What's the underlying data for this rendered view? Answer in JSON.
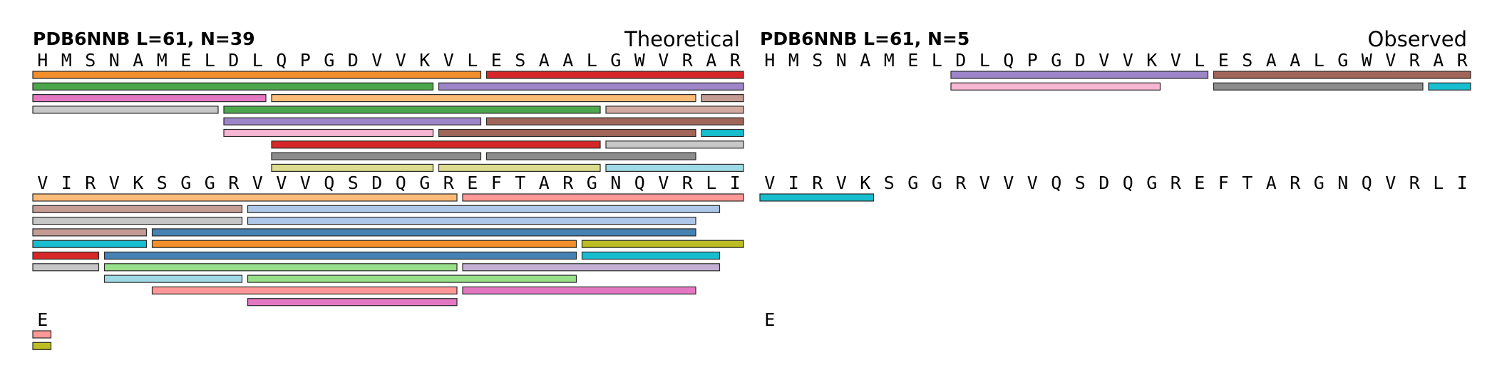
{
  "residue_width": 33.5,
  "panels": [
    {
      "id": "theoretical",
      "header": "PDB6NNB  L=61, N=39",
      "corner_label": "Theoretical",
      "blocks": [
        {
          "sequence": "HMSNAMELDLQPGDVVKVLESAALGWVRAR",
          "peptides": [
            {
              "start": 0,
              "end": 18,
              "lane": 0,
              "color": "#f28e2b"
            },
            {
              "start": 19,
              "end": 29,
              "lane": 0,
              "color": "#d62728"
            },
            {
              "start": 0,
              "end": 16,
              "lane": 1,
              "color": "#4ca64c"
            },
            {
              "start": 17,
              "end": 29,
              "lane": 1,
              "color": "#9e84c8"
            },
            {
              "start": 0,
              "end": 9,
              "lane": 2,
              "color": "#e377c2"
            },
            {
              "start": 10,
              "end": 27,
              "lane": 2,
              "color": "#ffbb78"
            },
            {
              "start": 28,
              "end": 29,
              "lane": 2,
              "color": "#c49c94"
            },
            {
              "start": 0,
              "end": 7,
              "lane": 3,
              "color": "#c7c7c7"
            },
            {
              "start": 8,
              "end": 23,
              "lane": 3,
              "color": "#4ca64c"
            },
            {
              "start": 24,
              "end": 29,
              "lane": 3,
              "color": "#d3aaa0"
            },
            {
              "start": 8,
              "end": 18,
              "lane": 4,
              "color": "#9e84c8"
            },
            {
              "start": 19,
              "end": 29,
              "lane": 4,
              "color": "#a0665a"
            },
            {
              "start": 8,
              "end": 16,
              "lane": 5,
              "color": "#f7b6d2"
            },
            {
              "start": 17,
              "end": 27,
              "lane": 5,
              "color": "#a0665a"
            },
            {
              "start": 28,
              "end": 29,
              "lane": 5,
              "color": "#17becf"
            },
            {
              "start": 10,
              "end": 23,
              "lane": 6,
              "color": "#d62728"
            },
            {
              "start": 24,
              "end": 29,
              "lane": 6,
              "color": "#c7c7c7"
            },
            {
              "start": 10,
              "end": 18,
              "lane": 7,
              "color": "#8c8c8c"
            },
            {
              "start": 19,
              "end": 27,
              "lane": 7,
              "color": "#8c8c8c"
            },
            {
              "start": 10,
              "end": 16,
              "lane": 8,
              "color": "#dbdb8d"
            },
            {
              "start": 17,
              "end": 23,
              "lane": 8,
              "color": "#dbdb8d"
            },
            {
              "start": 24,
              "end": 29,
              "lane": 8,
              "color": "#9edae5"
            }
          ]
        },
        {
          "sequence": "VIRVKSGGRVVVQSDQGREFTARGNQVRLI",
          "peptides": [
            {
              "start": 0,
              "end": 17,
              "lane": 0,
              "color": "#ffbb78"
            },
            {
              "start": 18,
              "end": 29,
              "lane": 0,
              "color": "#ff9896"
            },
            {
              "start": 0,
              "end": 8,
              "lane": 1,
              "color": "#c49c94"
            },
            {
              "start": 9,
              "end": 28,
              "lane": 1,
              "color": "#aec7e8"
            },
            {
              "start": 0,
              "end": 8,
              "lane": 2,
              "color": "#c7c7c7"
            },
            {
              "start": 9,
              "end": 27,
              "lane": 2,
              "color": "#aec7e8"
            },
            {
              "start": 0,
              "end": 4,
              "lane": 3,
              "color": "#c49c94"
            },
            {
              "start": 5,
              "end": 27,
              "lane": 3,
              "color": "#4682b4"
            },
            {
              "start": 0,
              "end": 4,
              "lane": 4,
              "color": "#17becf"
            },
            {
              "start": 5,
              "end": 22,
              "lane": 4,
              "color": "#f28e2b"
            },
            {
              "start": 23,
              "end": 29,
              "lane": 4,
              "color": "#bcbd22"
            },
            {
              "start": 0,
              "end": 2,
              "lane": 5,
              "color": "#d62728"
            },
            {
              "start": 3,
              "end": 22,
              "lane": 5,
              "color": "#4682b4"
            },
            {
              "start": 23,
              "end": 28,
              "lane": 5,
              "color": "#17becf"
            },
            {
              "start": 0,
              "end": 2,
              "lane": 6,
              "color": "#c7c7c7"
            },
            {
              "start": 3,
              "end": 17,
              "lane": 6,
              "color": "#98df8a"
            },
            {
              "start": 18,
              "end": 28,
              "lane": 6,
              "color": "#c5b0d5"
            },
            {
              "start": 3,
              "end": 8,
              "lane": 7,
              "color": "#9edae5"
            },
            {
              "start": 9,
              "end": 22,
              "lane": 7,
              "color": "#98df8a"
            },
            {
              "start": 5,
              "end": 17,
              "lane": 8,
              "color": "#ff9896"
            },
            {
              "start": 18,
              "end": 27,
              "lane": 8,
              "color": "#e377c2"
            },
            {
              "start": 9,
              "end": 17,
              "lane": 9,
              "color": "#e377c2"
            }
          ]
        },
        {
          "sequence": "E",
          "peptides": [
            {
              "start": 0,
              "end": 0,
              "lane": 0,
              "color": "#ff9896"
            },
            {
              "start": 0,
              "end": 0,
              "lane": 1,
              "color": "#bcbd22"
            }
          ]
        }
      ]
    },
    {
      "id": "observed",
      "header": "PDB6NNB  L=61, N=5",
      "corner_label": "Observed",
      "blocks": [
        {
          "sequence": "HMSNAMELDLQPGDVVKVLESAALGWVRAR",
          "peptides": [
            {
              "start": 8,
              "end": 18,
              "lane": 0,
              "color": "#9e84c8"
            },
            {
              "start": 19,
              "end": 29,
              "lane": 0,
              "color": "#a0665a"
            },
            {
              "start": 8,
              "end": 16,
              "lane": 1,
              "color": "#f7b6d2"
            },
            {
              "start": 19,
              "end": 27,
              "lane": 1,
              "color": "#8c8c8c"
            },
            {
              "start": 28,
              "end": 29,
              "lane": 1,
              "color": "#17becf"
            }
          ]
        },
        {
          "sequence": "VIRVKSGGRVVVQSDQGREFTARGNQVRLI",
          "peptides": [
            {
              "start": 0,
              "end": 4,
              "lane": 0,
              "color": "#17becf"
            }
          ]
        },
        {
          "sequence": "E",
          "peptides": []
        }
      ]
    }
  ]
}
